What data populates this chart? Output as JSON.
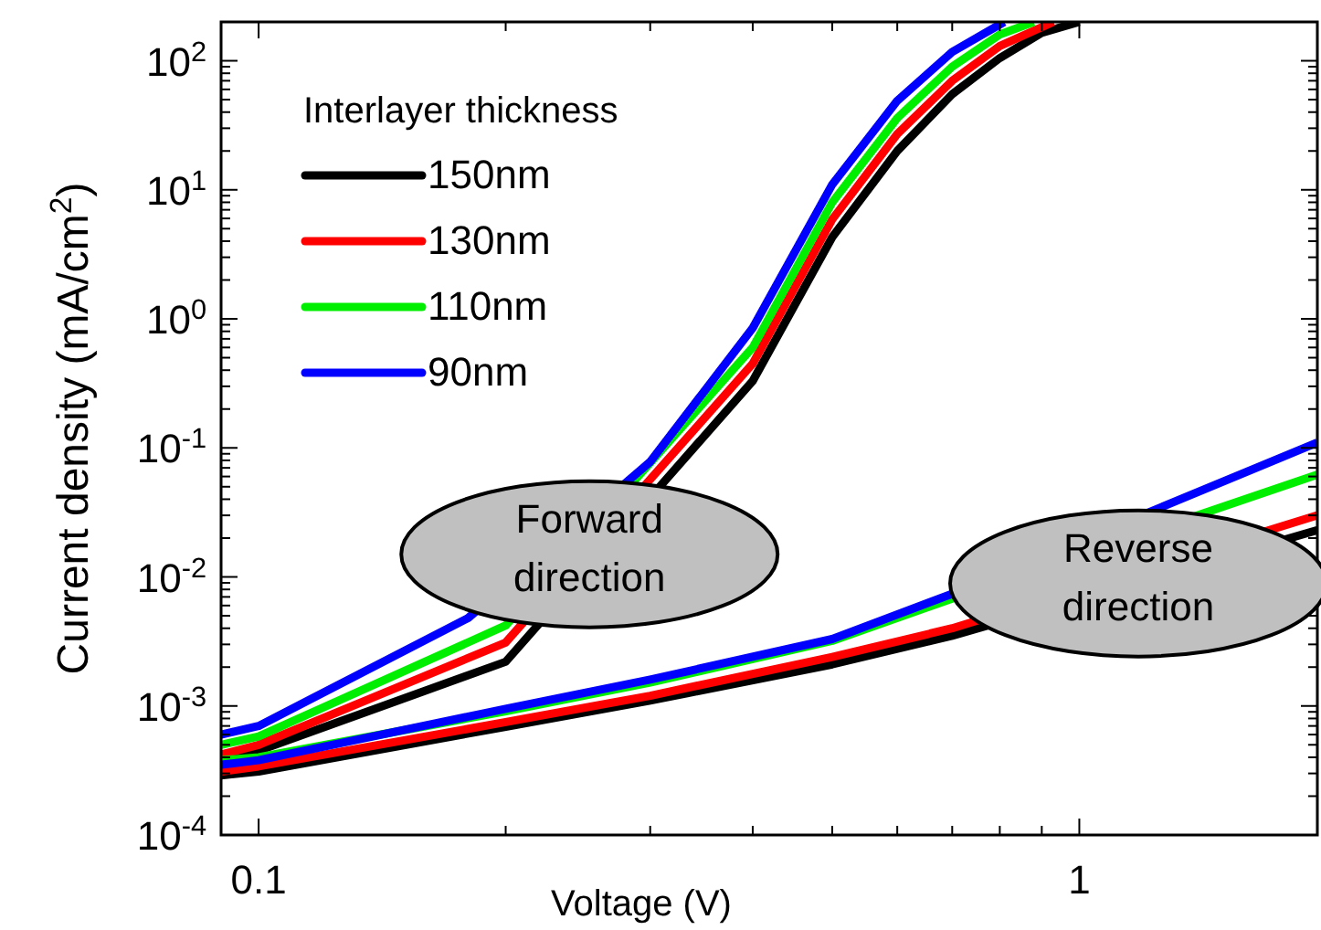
{
  "chart_data": {
    "type": "line",
    "xlabel": "Voltage (V)",
    "ylabel": "Current density (mA/cm$^{2}$)",
    "legend_title": "Interlayer thickness",
    "legend": "top left",
    "log": "xy",
    "grid": false,
    "marker": "none",
    "line_style": "solid",
    "xlim": [
      0.09,
      1.95
    ],
    "ylim": [
      0.0001,
      200
    ],
    "xticks": [
      0.1,
      {
        "value": 0.2,
        "label": null
      },
      {
        "value": 0.3,
        "label": null
      },
      {
        "value": 0.4,
        "label": null
      },
      {
        "value": 0.5,
        "label": null
      },
      {
        "value": 0.6,
        "label": null
      },
      {
        "value": 0.7,
        "label": null
      },
      {
        "value": 0.8,
        "label": null
      },
      {
        "value": 0.9,
        "label": null
      },
      1
    ],
    "yticks": [
      {
        "value": 0.0001,
        "label": "10$^{-4}$"
      },
      {
        "value": 0.0002,
        "label": null
      },
      {
        "value": 0.0003,
        "label": null
      },
      {
        "value": 0.0004,
        "label": null
      },
      {
        "value": 0.0005,
        "label": null
      },
      {
        "value": 0.0006,
        "label": null
      },
      {
        "value": 0.0007,
        "label": null
      },
      {
        "value": 0.0008,
        "label": null
      },
      {
        "value": 0.0009,
        "label": null
      },
      {
        "value": 0.001,
        "label": "10$^{-3}$"
      },
      {
        "value": 0.002,
        "label": null
      },
      {
        "value": 0.003,
        "label": null
      },
      {
        "value": 0.004,
        "label": null
      },
      {
        "value": 0.005,
        "label": null
      },
      {
        "value": 0.006,
        "label": null
      },
      {
        "value": 0.007,
        "label": null
      },
      {
        "value": 0.008,
        "label": null
      },
      {
        "value": 0.009,
        "label": null
      },
      {
        "value": 0.01,
        "label": "10$^{-2}$"
      },
      {
        "value": 0.02,
        "label": null
      },
      {
        "value": 0.03,
        "label": null
      },
      {
        "value": 0.04,
        "label": null
      },
      {
        "value": 0.05,
        "label": null
      },
      {
        "value": 0.06,
        "label": null
      },
      {
        "value": 0.07,
        "label": null
      },
      {
        "value": 0.08,
        "label": null
      },
      {
        "value": 0.09,
        "label": null
      },
      {
        "value": 0.1,
        "label": "10$^{-1}$"
      },
      {
        "value": 0.2,
        "label": null
      },
      {
        "value": 0.3,
        "label": null
      },
      {
        "value": 0.4,
        "label": null
      },
      {
        "value": 0.5,
        "label": null
      },
      {
        "value": 0.6,
        "label": null
      },
      {
        "value": 0.7,
        "label": null
      },
      {
        "value": 0.8,
        "label": null
      },
      {
        "value": 0.9,
        "label": null
      },
      {
        "value": 1,
        "label": "10$^{0}$"
      },
      {
        "value": 2,
        "label": null
      },
      {
        "value": 3,
        "label": null
      },
      {
        "value": 4,
        "label": null
      },
      {
        "value": 5,
        "label": null
      },
      {
        "value": 6,
        "label": null
      },
      {
        "value": 7,
        "label": null
      },
      {
        "value": 8,
        "label": null
      },
      {
        "value": 9,
        "label": null
      },
      {
        "value": 10,
        "label": "10$^{1}$"
      },
      {
        "value": 20,
        "label": null
      },
      {
        "value": 30,
        "label": null
      },
      {
        "value": 40,
        "label": null
      },
      {
        "value": 50,
        "label": null
      },
      {
        "value": 60,
        "label": null
      },
      {
        "value": 70,
        "label": null
      },
      {
        "value": 80,
        "label": null
      },
      {
        "value": 90,
        "label": null
      },
      {
        "value": 100,
        "label": "10$^{2}$"
      },
      {
        "value": 200,
        "label": null
      }
    ],
    "annotations": [
      {
        "text": "Forward direction",
        "x": 0.253,
        "y": 0.015
      },
      {
        "text": "Reverse direction",
        "x": 1.18,
        "y": 0.0089
      }
    ],
    "series": [
      {
        "name": "150nm",
        "color": "#000000",
        "x": [
          0.09,
          0.1,
          0.2,
          0.4,
          0.5,
          0.6,
          0.7,
          0.8,
          0.9,
          1
        ],
        "values": [
          0.00038,
          0.00045,
          0.0022,
          0.33,
          4.3,
          20,
          55,
          105,
          165,
          200
        ]
      },
      {
        "name": "130nm",
        "color": "#ff0000",
        "x": [
          0.09,
          0.1,
          0.2,
          0.4,
          0.5,
          0.6,
          0.7,
          0.8,
          0.93
        ],
        "values": [
          0.00042,
          0.0005,
          0.0031,
          0.45,
          5.9,
          27,
          70,
          130,
          200
        ]
      },
      {
        "name": "110nm",
        "color": "#00ee00",
        "x": [
          0.09,
          0.1,
          0.2,
          0.4,
          0.5,
          0.6,
          0.7,
          0.8,
          0.88
        ],
        "values": [
          0.0005,
          0.00058,
          0.0042,
          0.6,
          8,
          36,
          90,
          160,
          200
        ]
      },
      {
        "name": "90nm",
        "color": "#0000ff",
        "x": [
          0.09,
          0.1,
          0.18,
          0.3,
          0.4,
          0.5,
          0.6,
          0.7,
          0.81
        ],
        "values": [
          0.0006,
          0.0007,
          0.0048,
          0.078,
          0.85,
          11,
          49,
          117,
          200
        ]
      },
      {
        "color": "#000000",
        "x": [
          0.09,
          0.1,
          0.2,
          0.3,
          0.5,
          0.7,
          1.95
        ],
        "values": [
          0.00029,
          0.00031,
          0.00069,
          0.0011,
          0.0021,
          0.0035,
          0.023
        ]
      },
      {
        "color": "#ff0000",
        "x": [
          0.09,
          0.1,
          0.2,
          0.3,
          0.5,
          0.7,
          1.95
        ],
        "values": [
          0.00031,
          0.00034,
          0.00075,
          0.0012,
          0.0024,
          0.004,
          0.03
        ]
      },
      {
        "color": "#00ee00",
        "x": [
          0.09,
          0.1,
          0.2,
          0.3,
          0.5,
          0.7,
          1.95
        ],
        "values": [
          0.00038,
          0.0004,
          0.00091,
          0.00152,
          0.0032,
          0.0068,
          0.062
        ]
      },
      {
        "color": "#0000ff",
        "x": [
          0.09,
          0.1,
          0.2,
          0.3,
          0.5,
          0.7,
          1.95
        ],
        "values": [
          0.00035,
          0.00038,
          0.00095,
          0.0016,
          0.0033,
          0.0074,
          0.11
        ]
      }
    ]
  }
}
